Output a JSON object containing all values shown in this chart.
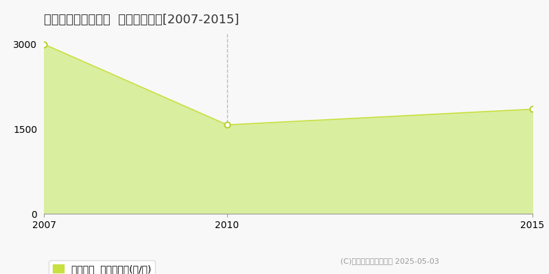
{
  "title": "最上郡最上町東法田  農地価格推移[2007-2015]",
  "x_values": [
    2007,
    2010,
    2015
  ],
  "y_values": [
    3000,
    1573,
    1850
  ],
  "fill_color": "#daeea0",
  "line_color": "#c8e040",
  "marker_color": "#ffffff",
  "marker_edge_color": "#b8d030",
  "xlim": [
    2007,
    2015
  ],
  "ylim": [
    0,
    3200
  ],
  "yticks": [
    0,
    1500,
    3000
  ],
  "xticks": [
    2007,
    2010,
    2015
  ],
  "vline_x": 2010,
  "vline_color": "#bbbbbb",
  "hline_y": 1500,
  "hline_color": "#cccccc",
  "legend_label": "農地価格  平均坪単価(円/坪)",
  "legend_color": "#c8e040",
  "copyright_text": "(C)土地価格ドットコム 2025-05-03",
  "background_color": "#f8f8f8",
  "plot_bg_color": "#f8f8f8",
  "title_fontsize": 13,
  "tick_fontsize": 10,
  "legend_fontsize": 10,
  "copyright_fontsize": 8
}
